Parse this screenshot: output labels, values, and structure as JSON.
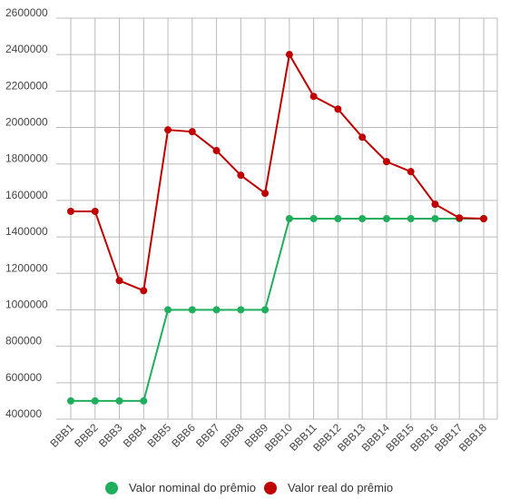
{
  "chart_data": {
    "type": "line",
    "categories": [
      "BBB1",
      "BBB2",
      "BBB3",
      "BBB4",
      "BBB5",
      "BBB6",
      "BBB7",
      "BBB8",
      "BBB9",
      "BBB10",
      "BBB11",
      "BBB12",
      "BBB13",
      "BBB14",
      "BBB15",
      "BBB16",
      "BBB17",
      "BBB18"
    ],
    "series": [
      {
        "name": "Valor nominal do prêmio",
        "color": "#1fae5b",
        "values": [
          500000,
          500000,
          500000,
          500000,
          1000000,
          1000000,
          1000000,
          1000000,
          1000000,
          1500000,
          1500000,
          1500000,
          1500000,
          1500000,
          1500000,
          1500000,
          1500000,
          1500000
        ]
      },
      {
        "name": "Valor real do prêmio",
        "color": "#c00000",
        "values": [
          1540000,
          1540000,
          1160000,
          1105000,
          1987000,
          1977000,
          1873000,
          1738000,
          1639000,
          2400000,
          2171000,
          2101000,
          1947000,
          1813000,
          1758000,
          1579000,
          1504000,
          1500000
        ]
      }
    ],
    "ylim": [
      400000,
      2600000
    ],
    "yticks": [
      400000,
      600000,
      800000,
      1000000,
      1200000,
      1400000,
      1600000,
      1800000,
      2000000,
      2200000,
      2400000,
      2600000
    ],
    "grid": true
  }
}
